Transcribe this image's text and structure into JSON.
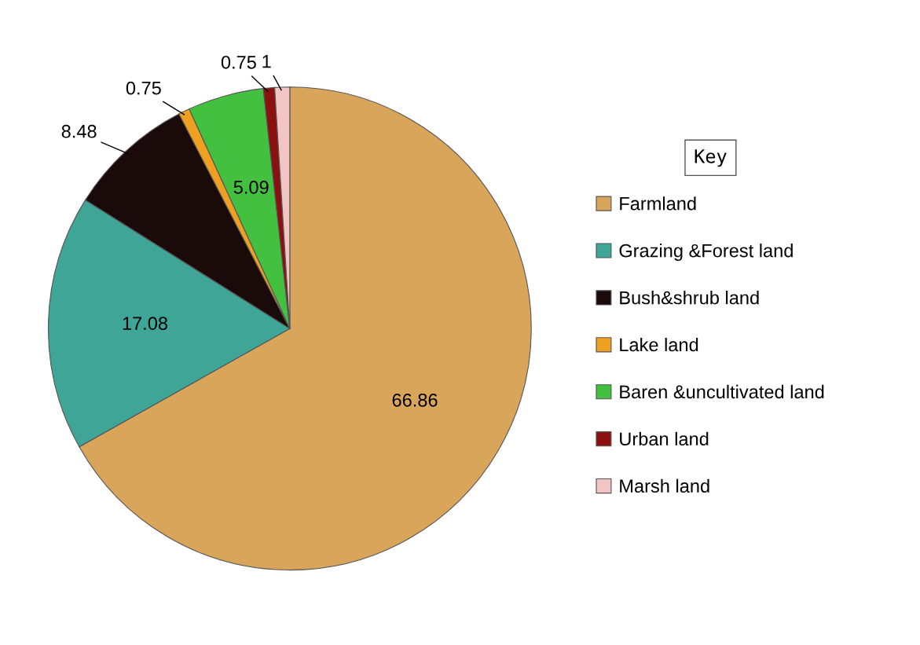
{
  "chart_data": {
    "type": "pie",
    "categories": [
      "Farmland",
      "Grazing &Forest land",
      "Bush&shrub land",
      "Lake land",
      "Baren &uncultivated land",
      "Urban land",
      "Marsh land"
    ],
    "values": [
      66.86,
      17.08,
      8.48,
      0.75,
      5.09,
      0.75,
      1
    ],
    "colors": [
      "#d9a55a",
      "#3fa596",
      "#1a0a0a",
      "#f0a020",
      "#44c040",
      "#8b1010",
      "#f2c4c4"
    ],
    "data_labels": true,
    "legend": "right",
    "legend_title": "Key"
  }
}
